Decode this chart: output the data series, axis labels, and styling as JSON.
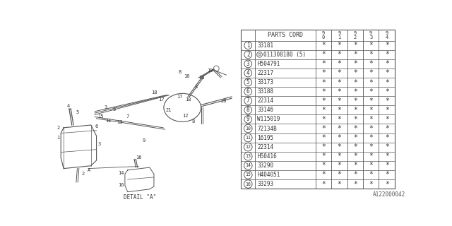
{
  "bg_color": "#ffffff",
  "line_color": "#555555",
  "text_color": "#333333",
  "part_numbers": [
    "33181",
    "011308180 (5)",
    "H504791",
    "22317",
    "33173",
    "33188",
    "22314",
    "33146",
    "W115019",
    "72134B",
    "16195",
    "22314",
    "H50416",
    "33290",
    "H404051",
    "33293"
  ],
  "row_indices": [
    "1",
    "2",
    "3",
    "4",
    "5",
    "6",
    "7",
    "8",
    "9",
    "10",
    "11",
    "12",
    "13",
    "14",
    "15",
    "16"
  ],
  "col_headers": [
    "9\n0",
    "9\n1",
    "9\n2",
    "9\n3",
    "9\n4"
  ],
  "header_label": "PARTS CORD",
  "star": "*",
  "watermark": "A122000042",
  "detail_label": "DETAIL \"A\""
}
